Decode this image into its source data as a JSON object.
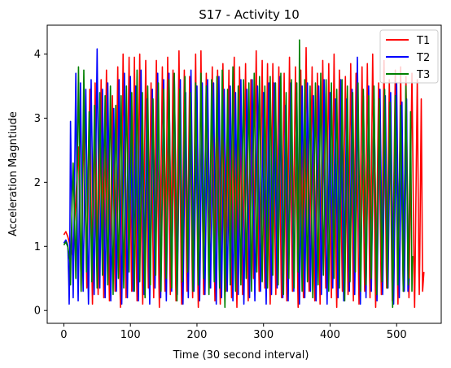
{
  "chart_data": {
    "type": "line",
    "title": "S17 - Activity 10",
    "xlabel": "Time (30 second interval)",
    "ylabel": "Acceleration Magntiude",
    "xlim": [
      -25,
      567
    ],
    "ylim": [
      -0.2,
      4.45
    ],
    "xticks": [
      0,
      100,
      200,
      300,
      400,
      500
    ],
    "yticks": [
      0,
      1,
      2,
      3,
      4
    ],
    "grid": false,
    "legend_position": "top-right",
    "series": [
      {
        "name": "T1",
        "color": "#ff0000",
        "x_end": 541,
        "start_value": 1.18,
        "end_value": 0.6,
        "peaks": [
          [
            22,
            2.55
          ],
          [
            30,
            2.95
          ],
          [
            39,
            3.45
          ],
          [
            47,
            3.55
          ],
          [
            56,
            3.6
          ],
          [
            64,
            3.75
          ],
          [
            73,
            3.35
          ],
          [
            81,
            3.8
          ],
          [
            89,
            4.0
          ],
          [
            98,
            3.95
          ],
          [
            106,
            3.95
          ],
          [
            114,
            4.0
          ],
          [
            123,
            3.9
          ],
          [
            131,
            3.55
          ],
          [
            139,
            3.9
          ],
          [
            148,
            3.8
          ],
          [
            156,
            3.95
          ],
          [
            164,
            3.75
          ],
          [
            173,
            4.05
          ],
          [
            181,
            3.75
          ],
          [
            189,
            3.65
          ],
          [
            198,
            4.0
          ],
          [
            206,
            4.05
          ],
          [
            214,
            3.7
          ],
          [
            223,
            3.8
          ],
          [
            231,
            3.75
          ],
          [
            239,
            3.85
          ],
          [
            248,
            3.75
          ],
          [
            256,
            3.95
          ],
          [
            264,
            3.8
          ],
          [
            273,
            3.85
          ],
          [
            281,
            3.6
          ],
          [
            289,
            4.05
          ],
          [
            298,
            3.9
          ],
          [
            306,
            3.85
          ],
          [
            314,
            3.85
          ],
          [
            323,
            3.8
          ],
          [
            331,
            3.7
          ],
          [
            339,
            3.95
          ],
          [
            348,
            3.8
          ],
          [
            356,
            3.75
          ],
          [
            364,
            4.1
          ],
          [
            373,
            3.8
          ],
          [
            381,
            3.7
          ],
          [
            389,
            3.9
          ],
          [
            398,
            3.85
          ],
          [
            406,
            4.0
          ],
          [
            414,
            3.75
          ],
          [
            423,
            3.65
          ],
          [
            431,
            3.85
          ],
          [
            439,
            3.7
          ],
          [
            448,
            3.8
          ],
          [
            456,
            3.85
          ],
          [
            464,
            4.0
          ],
          [
            473,
            3.55
          ],
          [
            481,
            3.9
          ],
          [
            489,
            3.6
          ],
          [
            498,
            3.75
          ],
          [
            506,
            3.8
          ],
          [
            514,
            3.65
          ],
          [
            523,
            3.7
          ],
          [
            531,
            3.6
          ],
          [
            537,
            3.3
          ]
        ],
        "troughs": [
          0.5,
          0.3,
          0.35,
          0.1,
          0.25,
          0.2,
          0.15,
          0.3,
          0.05,
          0.2,
          0.3,
          0.15,
          0.1,
          0.35,
          0.2,
          0.05,
          0.3,
          0.25,
          0.15,
          0.1,
          0.3,
          0.2,
          0.05,
          0.25,
          0.35,
          0.15,
          0.1,
          0.3,
          0.2,
          0.05,
          0.25,
          0.15
        ]
      },
      {
        "name": "T2",
        "color": "#0000ff",
        "x_end": 519,
        "start_value": 1.05,
        "end_value": 0.5,
        "peaks": [
          [
            10,
            2.95
          ],
          [
            18,
            3.7
          ],
          [
            25,
            3.55
          ],
          [
            33,
            3.45
          ],
          [
            41,
            3.6
          ],
          [
            50,
            4.08
          ],
          [
            58,
            3.45
          ],
          [
            66,
            3.55
          ],
          [
            75,
            3.15
          ],
          [
            83,
            3.6
          ],
          [
            91,
            3.7
          ],
          [
            100,
            3.65
          ],
          [
            108,
            3.5
          ],
          [
            116,
            3.75
          ],
          [
            125,
            3.3
          ],
          [
            133,
            3.45
          ],
          [
            141,
            3.7
          ],
          [
            150,
            3.6
          ],
          [
            158,
            3.7
          ],
          [
            166,
            3.65
          ],
          [
            175,
            3.6
          ],
          [
            183,
            3.4
          ],
          [
            191,
            3.75
          ],
          [
            200,
            3.5
          ],
          [
            208,
            3.55
          ],
          [
            216,
            3.6
          ],
          [
            225,
            3.55
          ],
          [
            233,
            3.65
          ],
          [
            241,
            3.45
          ],
          [
            250,
            3.5
          ],
          [
            258,
            3.4
          ],
          [
            266,
            3.6
          ],
          [
            275,
            3.45
          ],
          [
            283,
            3.6
          ],
          [
            291,
            3.5
          ],
          [
            300,
            3.4
          ],
          [
            308,
            3.55
          ],
          [
            316,
            3.55
          ],
          [
            325,
            3.65
          ],
          [
            333,
            3.2
          ],
          [
            341,
            3.55
          ],
          [
            350,
            3.4
          ],
          [
            358,
            3.5
          ],
          [
            366,
            3.55
          ],
          [
            375,
            3.35
          ],
          [
            383,
            3.5
          ],
          [
            391,
            3.6
          ],
          [
            400,
            3.4
          ],
          [
            408,
            3.3
          ],
          [
            416,
            3.6
          ],
          [
            425,
            3.3
          ],
          [
            433,
            3.45
          ],
          [
            441,
            3.95
          ],
          [
            450,
            3.35
          ],
          [
            458,
            3.5
          ],
          [
            466,
            3.3
          ],
          [
            475,
            3.45
          ],
          [
            483,
            3.35
          ],
          [
            491,
            3.4
          ],
          [
            500,
            3.55
          ],
          [
            508,
            3.25
          ],
          [
            515,
            3.3
          ]
        ],
        "troughs": [
          0.1,
          0.2,
          0.15,
          0.3,
          0.1,
          0.25,
          0.35,
          0.2,
          0.15,
          0.3,
          0.1,
          0.2,
          0.3,
          0.15,
          0.25,
          0.1,
          0.35,
          0.2,
          0.15,
          0.3,
          0.25,
          0.1,
          0.2,
          0.3,
          0.15,
          0.25,
          0.35,
          0.1,
          0.2,
          0.3,
          0.15,
          0.25
        ]
      },
      {
        "name": "T3",
        "color": "#008000",
        "x_end": 524,
        "start_value": 1.02,
        "end_value": 0.85,
        "peaks": [
          [
            14,
            2.3
          ],
          [
            22,
            3.8
          ],
          [
            30,
            3.75
          ],
          [
            38,
            3.1
          ],
          [
            46,
            3.2
          ],
          [
            54,
            3.4
          ],
          [
            62,
            3.35
          ],
          [
            70,
            3.5
          ],
          [
            78,
            3.2
          ],
          [
            86,
            3.35
          ],
          [
            94,
            3.5
          ],
          [
            102,
            3.4
          ],
          [
            110,
            3.75
          ],
          [
            118,
            3.4
          ],
          [
            126,
            3.5
          ],
          [
            134,
            3.3
          ],
          [
            142,
            3.55
          ],
          [
            150,
            3.45
          ],
          [
            158,
            3.6
          ],
          [
            166,
            3.7
          ],
          [
            174,
            3.45
          ],
          [
            182,
            3.65
          ],
          [
            190,
            3.4
          ],
          [
            198,
            3.55
          ],
          [
            206,
            3.7
          ],
          [
            214,
            3.5
          ],
          [
            222,
            3.6
          ],
          [
            230,
            3.65
          ],
          [
            238,
            3.75
          ],
          [
            246,
            3.45
          ],
          [
            254,
            3.8
          ],
          [
            262,
            3.5
          ],
          [
            270,
            3.6
          ],
          [
            278,
            3.55
          ],
          [
            286,
            3.7
          ],
          [
            294,
            3.65
          ],
          [
            302,
            3.5
          ],
          [
            310,
            3.65
          ],
          [
            318,
            3.55
          ],
          [
            326,
            3.7
          ],
          [
            334,
            3.4
          ],
          [
            342,
            3.6
          ],
          [
            350,
            3.55
          ],
          [
            354,
            4.22
          ],
          [
            362,
            3.6
          ],
          [
            370,
            3.5
          ],
          [
            378,
            3.55
          ],
          [
            386,
            3.7
          ],
          [
            394,
            3.6
          ],
          [
            402,
            3.55
          ],
          [
            410,
            3.45
          ],
          [
            418,
            3.6
          ],
          [
            426,
            3.5
          ],
          [
            434,
            3.4
          ],
          [
            442,
            3.55
          ],
          [
            450,
            3.45
          ],
          [
            458,
            3.35
          ],
          [
            466,
            3.5
          ],
          [
            474,
            3.3
          ],
          [
            482,
            3.45
          ],
          [
            490,
            3.25
          ],
          [
            498,
            3.35
          ],
          [
            506,
            3.2
          ],
          [
            514,
            3.5
          ],
          [
            521,
            3.1
          ]
        ],
        "troughs": [
          0.4,
          0.5,
          0.3,
          0.6,
          0.45,
          0.35,
          0.55,
          0.4,
          0.25,
          0.5,
          0.35,
          0.6,
          0.3,
          0.45,
          0.2,
          0.4,
          0.55,
          0.3,
          0.5,
          0.35,
          0.15,
          0.45,
          0.6,
          0.3,
          0.4,
          0.5,
          0.25,
          0.45,
          0.35,
          0.05,
          0.4,
          0.3
        ]
      }
    ]
  }
}
